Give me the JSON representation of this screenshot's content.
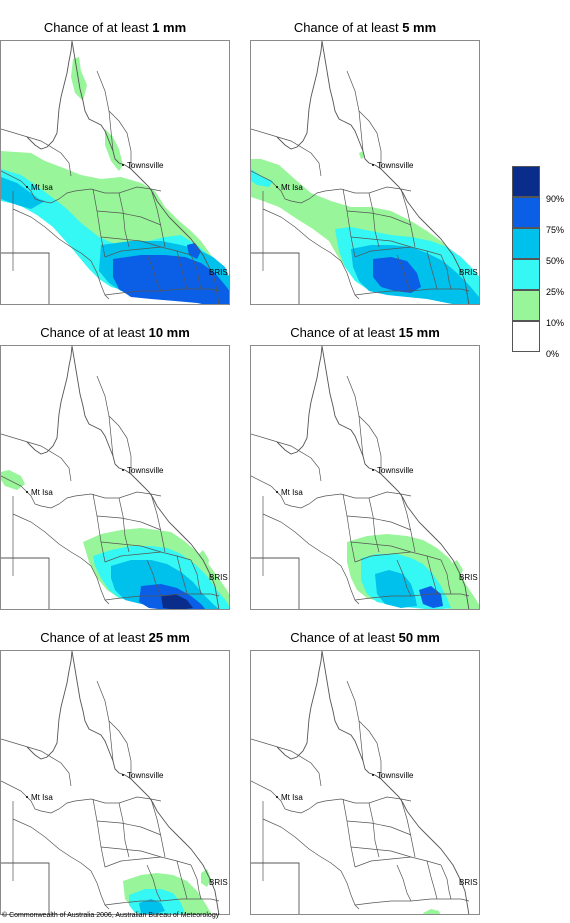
{
  "panels": [
    {
      "title_prefix": "Chance of at least ",
      "amount": "1 mm"
    },
    {
      "title_prefix": "Chance of at least ",
      "amount": "5 mm"
    },
    {
      "title_prefix": "Chance of at least ",
      "amount": "10 mm"
    },
    {
      "title_prefix": "Chance of at least ",
      "amount": "15 mm"
    },
    {
      "title_prefix": "Chance of at least ",
      "amount": "25 mm"
    },
    {
      "title_prefix": "Chance of at least ",
      "amount": "50 mm"
    }
  ],
  "map_labels": {
    "townsville": "Townsville",
    "mt_isa": "Mt Isa",
    "brisbane": "BRIS"
  },
  "legend": {
    "categories": [
      {
        "label": "90%",
        "color": "#0a2d8c"
      },
      {
        "label": "75%",
        "color": "#0b5fe6"
      },
      {
        "label": "50%",
        "color": "#00c0ec"
      },
      {
        "label": "25%",
        "color": "#35f7f3"
      },
      {
        "label": "10%",
        "color": "#98f59a"
      },
      {
        "label": "0%",
        "color": "#ffffff"
      }
    ]
  },
  "copyright": "© Commonwealth of Australia 2006, Australian Bureau of Meteorology"
}
